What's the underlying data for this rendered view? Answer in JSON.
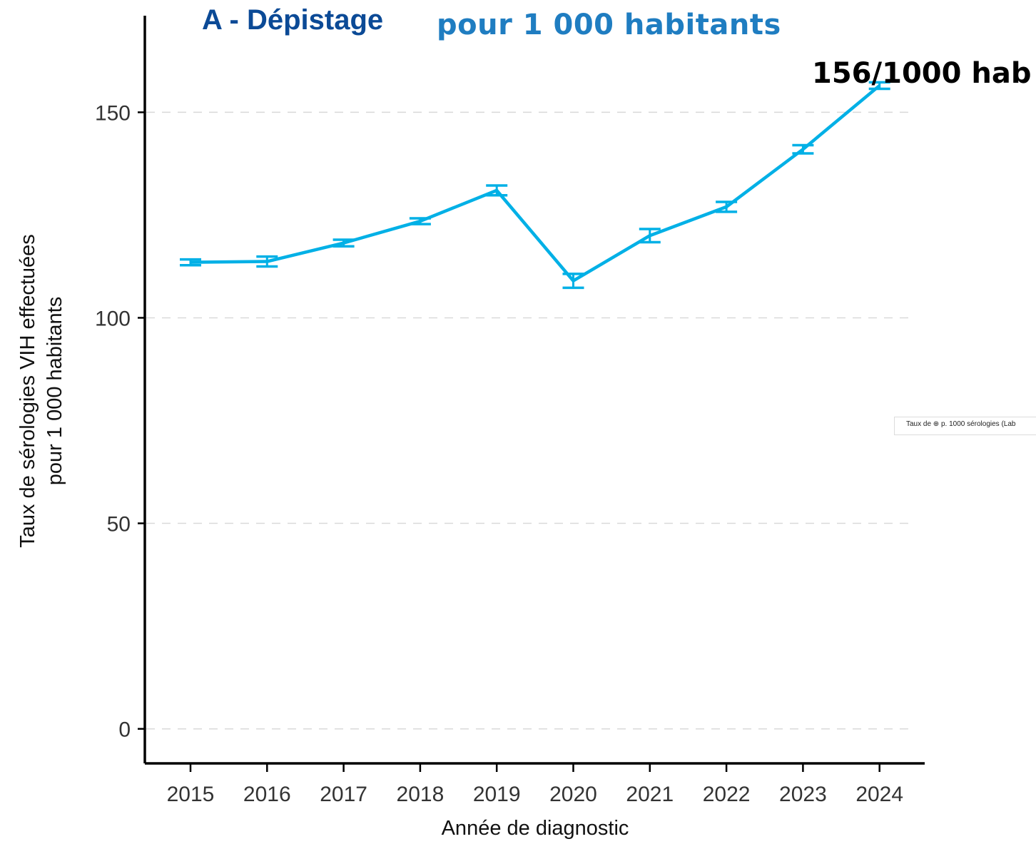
{
  "title_main": "A - Dépistage",
  "title_sub": "pour 1 000 habitants",
  "annotation": "156/1000 hab",
  "legend_fragment": "Taux de ⊕ p. 1000 sérologies (Lab",
  "colors": {
    "line": "#00b0e6",
    "title_main": "#0b4a96",
    "title_sub": "#1f7dc1",
    "axis": "#000000",
    "grid": "#d9d9d9"
  },
  "chart_data": {
    "type": "line",
    "title": "A - Dépistage",
    "subtitle": "pour 1 000 habitants",
    "xlabel": "Année de diagnostic",
    "ylabel_line1": "Taux de sérologies VIH effectuées",
    "ylabel_line2": "pour 1 000 habitants",
    "categories": [
      "2015",
      "2016",
      "2017",
      "2018",
      "2019",
      "2020",
      "2021",
      "2022",
      "2023",
      "2024"
    ],
    "series": [
      {
        "values": [
          113.5,
          113.7,
          118.2,
          123.5,
          131.0,
          109.0,
          120.0,
          127.0,
          141.0,
          156.5
        ],
        "lower": [
          112.8,
          112.5,
          117.4,
          122.8,
          129.8,
          107.3,
          118.4,
          125.8,
          140.0,
          155.7
        ],
        "upper": [
          114.2,
          114.9,
          119.0,
          124.2,
          132.2,
          110.7,
          121.6,
          128.2,
          142.0,
          157.3
        ]
      }
    ],
    "yticks": [
      0,
      50,
      100,
      150
    ],
    "ylim": [
      -8.4,
      173.5
    ],
    "grid": "horizontal dashed"
  }
}
